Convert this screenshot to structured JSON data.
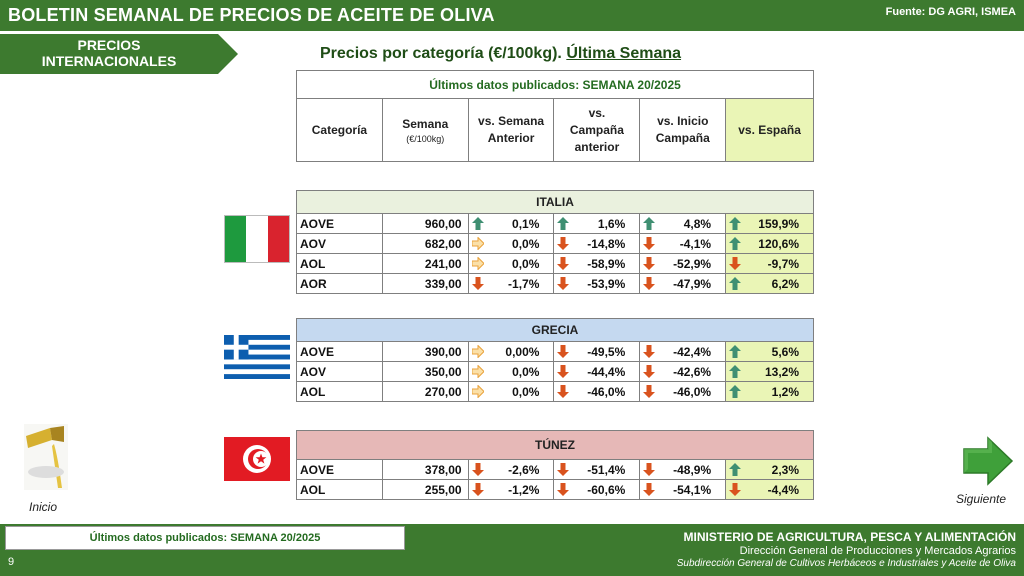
{
  "header": {
    "title": "BOLETIN SEMANAL DE PRECIOS DE ACEITE DE OLIVA",
    "source": "Fuente: DG AGRI, ISMEA"
  },
  "section_tag": {
    "line1": "PRECIOS",
    "line2": "INTERNACIONALES"
  },
  "heading": {
    "main": "Precios por categoría (€/100kg). ",
    "underlined": "Última Semana"
  },
  "table_header": {
    "top": "Últimos datos publicados: SEMANA 20/2025",
    "columns": {
      "categoria": "Categoría",
      "semana": "Semana",
      "semana_unit": "(€/100kg)",
      "vs_semana_1": "vs. Semana",
      "vs_semana_2": "Anterior",
      "vs_campana_1": "vs.",
      "vs_campana_2": "Campaña",
      "vs_campana_3": "anterior",
      "vs_inicio_1": "vs. Inicio",
      "vs_inicio_2": "Campaña",
      "vs_espana": "vs. España"
    }
  },
  "colors": {
    "up": "#3f8f72",
    "down": "#d9531e",
    "flat": "#e9a23b",
    "italia_header": "#eaf1de",
    "grecia_header": "#c5d9f0",
    "tunez_header": "#e6b8b7",
    "espana_column": "#eaf5b6",
    "brand_green": "#3d7a2f"
  },
  "countries": [
    {
      "name": "ITALIA",
      "rows": [
        {
          "cat": "AOVE",
          "value": "960,00",
          "vs_sem": {
            "text": "0,1%",
            "dir": "up"
          },
          "vs_camp": {
            "text": "1,6%",
            "dir": "up"
          },
          "vs_ini": {
            "text": "4,8%",
            "dir": "up"
          },
          "vs_esp": {
            "text": "159,9%",
            "dir": "up"
          }
        },
        {
          "cat": "AOV",
          "value": "682,00",
          "vs_sem": {
            "text": "0,0%",
            "dir": "flat"
          },
          "vs_camp": {
            "text": "-14,8%",
            "dir": "down"
          },
          "vs_ini": {
            "text": "-4,1%",
            "dir": "down"
          },
          "vs_esp": {
            "text": "120,6%",
            "dir": "up"
          }
        },
        {
          "cat": "AOL",
          "value": "241,00",
          "vs_sem": {
            "text": "0,0%",
            "dir": "flat"
          },
          "vs_camp": {
            "text": "-58,9%",
            "dir": "down"
          },
          "vs_ini": {
            "text": "-52,9%",
            "dir": "down"
          },
          "vs_esp": {
            "text": "-9,7%",
            "dir": "down"
          }
        },
        {
          "cat": "AOR",
          "value": "339,00",
          "vs_sem": {
            "text": "-1,7%",
            "dir": "down"
          },
          "vs_camp": {
            "text": "-53,9%",
            "dir": "down"
          },
          "vs_ini": {
            "text": "-47,9%",
            "dir": "down"
          },
          "vs_esp": {
            "text": "6,2%",
            "dir": "up"
          }
        }
      ]
    },
    {
      "name": "GRECIA",
      "rows": [
        {
          "cat": "AOVE",
          "value": "390,00",
          "vs_sem": {
            "text": "0,00%",
            "dir": "flat"
          },
          "vs_camp": {
            "text": "-49,5%",
            "dir": "down"
          },
          "vs_ini": {
            "text": "-42,4%",
            "dir": "down"
          },
          "vs_esp": {
            "text": "5,6%",
            "dir": "up"
          }
        },
        {
          "cat": "AOV",
          "value": "350,00",
          "vs_sem": {
            "text": "0,0%",
            "dir": "flat"
          },
          "vs_camp": {
            "text": "-44,4%",
            "dir": "down"
          },
          "vs_ini": {
            "text": "-42,6%",
            "dir": "down"
          },
          "vs_esp": {
            "text": "13,2%",
            "dir": "up"
          }
        },
        {
          "cat": "AOL",
          "value": "270,00",
          "vs_sem": {
            "text": "0,0%",
            "dir": "flat"
          },
          "vs_camp": {
            "text": "-46,0%",
            "dir": "down"
          },
          "vs_ini": {
            "text": "-46,0%",
            "dir": "down"
          },
          "vs_esp": {
            "text": "1,2%",
            "dir": "up"
          }
        }
      ]
    },
    {
      "name": "TÚNEZ",
      "rows": [
        {
          "cat": "AOVE",
          "value": "378,00",
          "vs_sem": {
            "text": "-2,6%",
            "dir": "down"
          },
          "vs_camp": {
            "text": "-51,4%",
            "dir": "down"
          },
          "vs_ini": {
            "text": "-48,9%",
            "dir": "down"
          },
          "vs_esp": {
            "text": "2,3%",
            "dir": "up"
          }
        },
        {
          "cat": "AOL",
          "value": "255,00",
          "vs_sem": {
            "text": "-1,2%",
            "dir": "down"
          },
          "vs_camp": {
            "text": "-60,6%",
            "dir": "down"
          },
          "vs_ini": {
            "text": "-54,1%",
            "dir": "down"
          },
          "vs_esp": {
            "text": "-4,4%",
            "dir": "down"
          }
        }
      ]
    }
  ],
  "nav": {
    "inicio": "Inicio",
    "siguiente": "Siguiente"
  },
  "footer": {
    "latest": "Últimos datos publicados: SEMANA 20/2025",
    "page": "9",
    "ministry": "MINISTERIO DE AGRICULTURA, PESCA Y ALIMENTACIÓN",
    "direccion": "Dirección General de Producciones y Mercados Agrarios",
    "subdireccion": "Subdirección General de Cultivos Herbáceos e Industriales y Aceite de Oliva"
  }
}
